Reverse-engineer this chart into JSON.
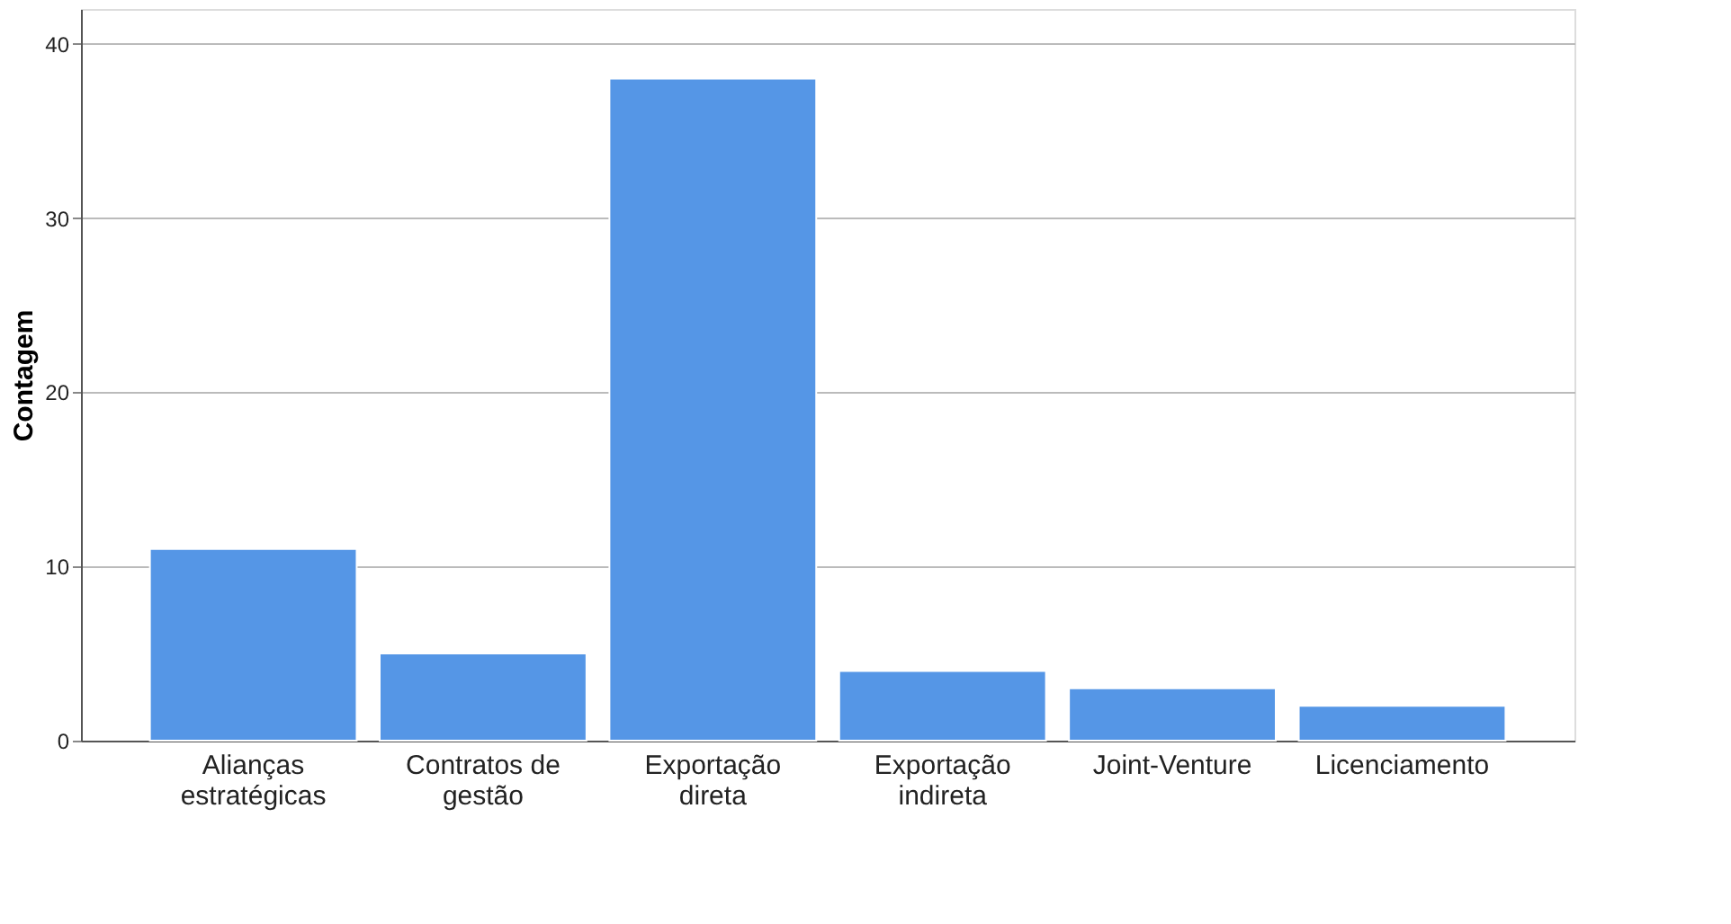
{
  "chart_data": {
    "type": "bar",
    "ylabel": "Contagem",
    "categories": [
      "Alianças estratégicas",
      "Contratos de gestão",
      "Exportação direta",
      "Exportação indireta",
      "Joint-Venture",
      "Licenciamento"
    ],
    "values": [
      11,
      5,
      38,
      4,
      3,
      2
    ],
    "color": "#5596e6",
    "ylim": [
      0,
      42
    ],
    "yticks": [
      0,
      10,
      20,
      30,
      40
    ],
    "grid": "y"
  }
}
